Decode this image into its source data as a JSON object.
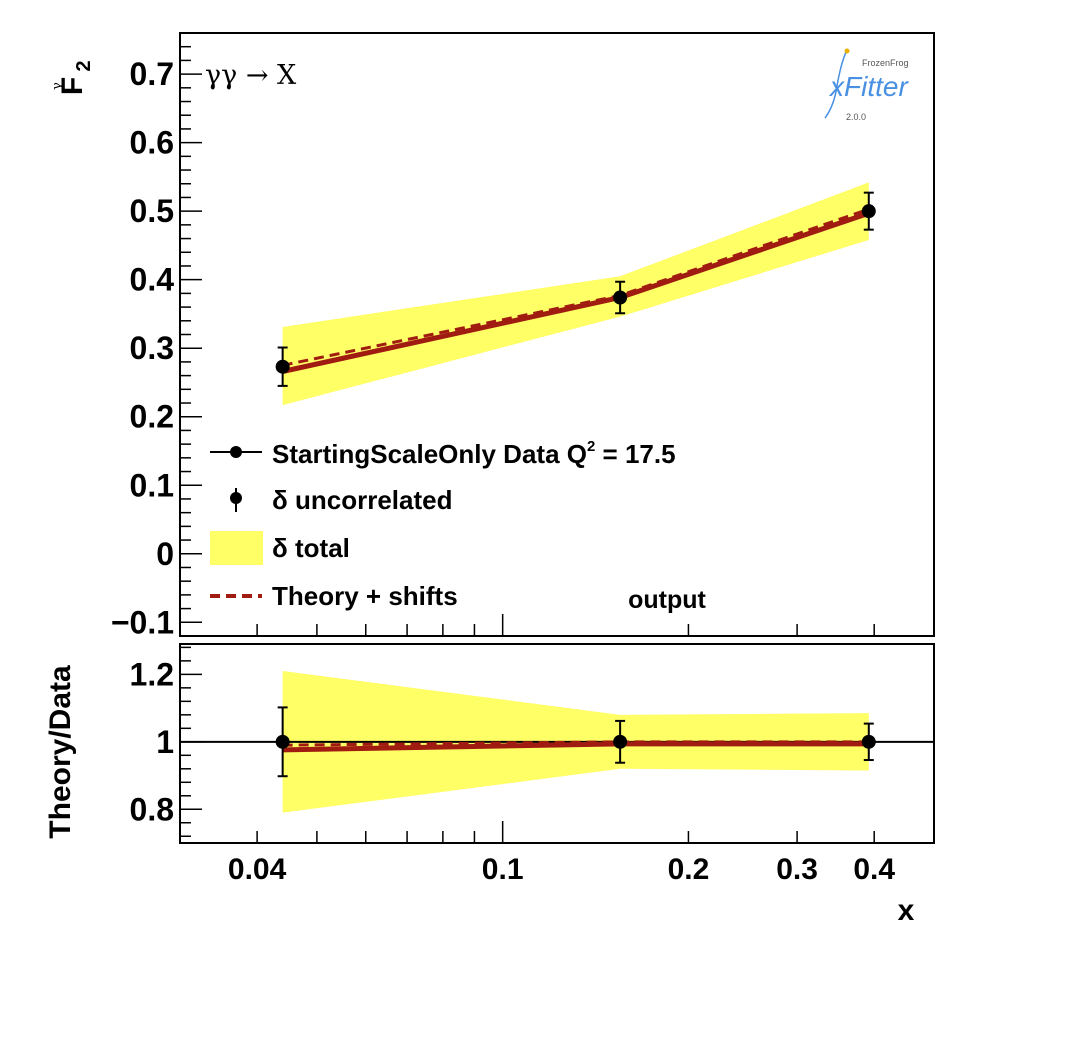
{
  "colors": {
    "band": "#ffff66",
    "theory": "#a01c10",
    "data": "#000000",
    "logo": "#4a90e2"
  },
  "process_label": "γγ → X",
  "sample_label": "output",
  "logo": {
    "top": "FrozenFrog",
    "name": "xFitter",
    "version": "2.0.0"
  },
  "legend": {
    "entries": [
      {
        "text": "StartingScaleOnly  Data Q",
        "sup": "2",
        "tail": " = 17.5",
        "marker": "point-line"
      },
      {
        "text": "δ uncorrelated",
        "marker": "point-errbar"
      },
      {
        "text": "δ total",
        "marker": "box"
      },
      {
        "text": "Theory + shifts",
        "marker": "dashed-line"
      }
    ]
  },
  "chart_data": [
    {
      "type": "line",
      "panel": "main",
      "ylabel": "F",
      "ylabel_sub": "2",
      "ylabel_sup": "γ",
      "xscale": "log",
      "xlim": [
        0.03,
        0.5
      ],
      "ylim": [
        -0.12,
        0.76
      ],
      "yticks": [
        {
          "v": -0.1,
          "label": "−0.1"
        },
        {
          "v": 0,
          "label": "0"
        },
        {
          "v": 0.1,
          "label": "0.1"
        },
        {
          "v": 0.2,
          "label": "0.2"
        },
        {
          "v": 0.3,
          "label": "0.3"
        },
        {
          "v": 0.4,
          "label": "0.4"
        },
        {
          "v": 0.5,
          "label": "0.5"
        },
        {
          "v": 0.6,
          "label": "0.6"
        },
        {
          "v": 0.7,
          "label": "0.7"
        }
      ],
      "points": [
        {
          "x": 0.044,
          "y": 0.273,
          "err_unc": 0.028,
          "total_lo": 0.217,
          "total_hi": 0.331,
          "theory": 0.266,
          "theory_shift": 0.275
        },
        {
          "x": 0.155,
          "y": 0.374,
          "err_unc": 0.023,
          "total_lo": 0.346,
          "total_hi": 0.405,
          "theory": 0.374,
          "theory_shift": 0.377
        },
        {
          "x": 0.392,
          "y": 0.5,
          "err_unc": 0.027,
          "total_lo": 0.458,
          "total_hi": 0.542,
          "theory": 0.497,
          "theory_shift": 0.503
        }
      ]
    },
    {
      "type": "line",
      "panel": "ratio",
      "ylabel": "Theory/Data",
      "xlabel": "x",
      "xscale": "log",
      "xlim": [
        0.03,
        0.5
      ],
      "ylim": [
        0.7,
        1.29
      ],
      "yticks": [
        {
          "v": 0.8,
          "label": "0.8"
        },
        {
          "v": 1.0,
          "label": "1"
        },
        {
          "v": 1.2,
          "label": "1.2"
        }
      ],
      "xticks": [
        {
          "v": 0.04,
          "label": "0.04"
        },
        {
          "v": 0.1,
          "label": "0.1"
        },
        {
          "v": 0.2,
          "label": "0.2"
        },
        {
          "v": 0.3,
          "label": "0.3"
        },
        {
          "v": 0.4,
          "label": "0.4"
        }
      ],
      "points": [
        {
          "x": 0.044,
          "y": 1.0,
          "err_unc": 0.102,
          "total_lo": 0.79,
          "total_hi": 1.21,
          "theory": 0.976,
          "theory_shift": 0.99
        },
        {
          "x": 0.155,
          "y": 1.0,
          "err_unc": 0.062,
          "total_lo": 0.92,
          "total_hi": 1.08,
          "theory": 0.994,
          "theory_shift": 1.0
        },
        {
          "x": 0.392,
          "y": 1.0,
          "err_unc": 0.054,
          "total_lo": 0.915,
          "total_hi": 1.085,
          "theory": 0.994,
          "theory_shift": 1.0
        }
      ]
    }
  ]
}
